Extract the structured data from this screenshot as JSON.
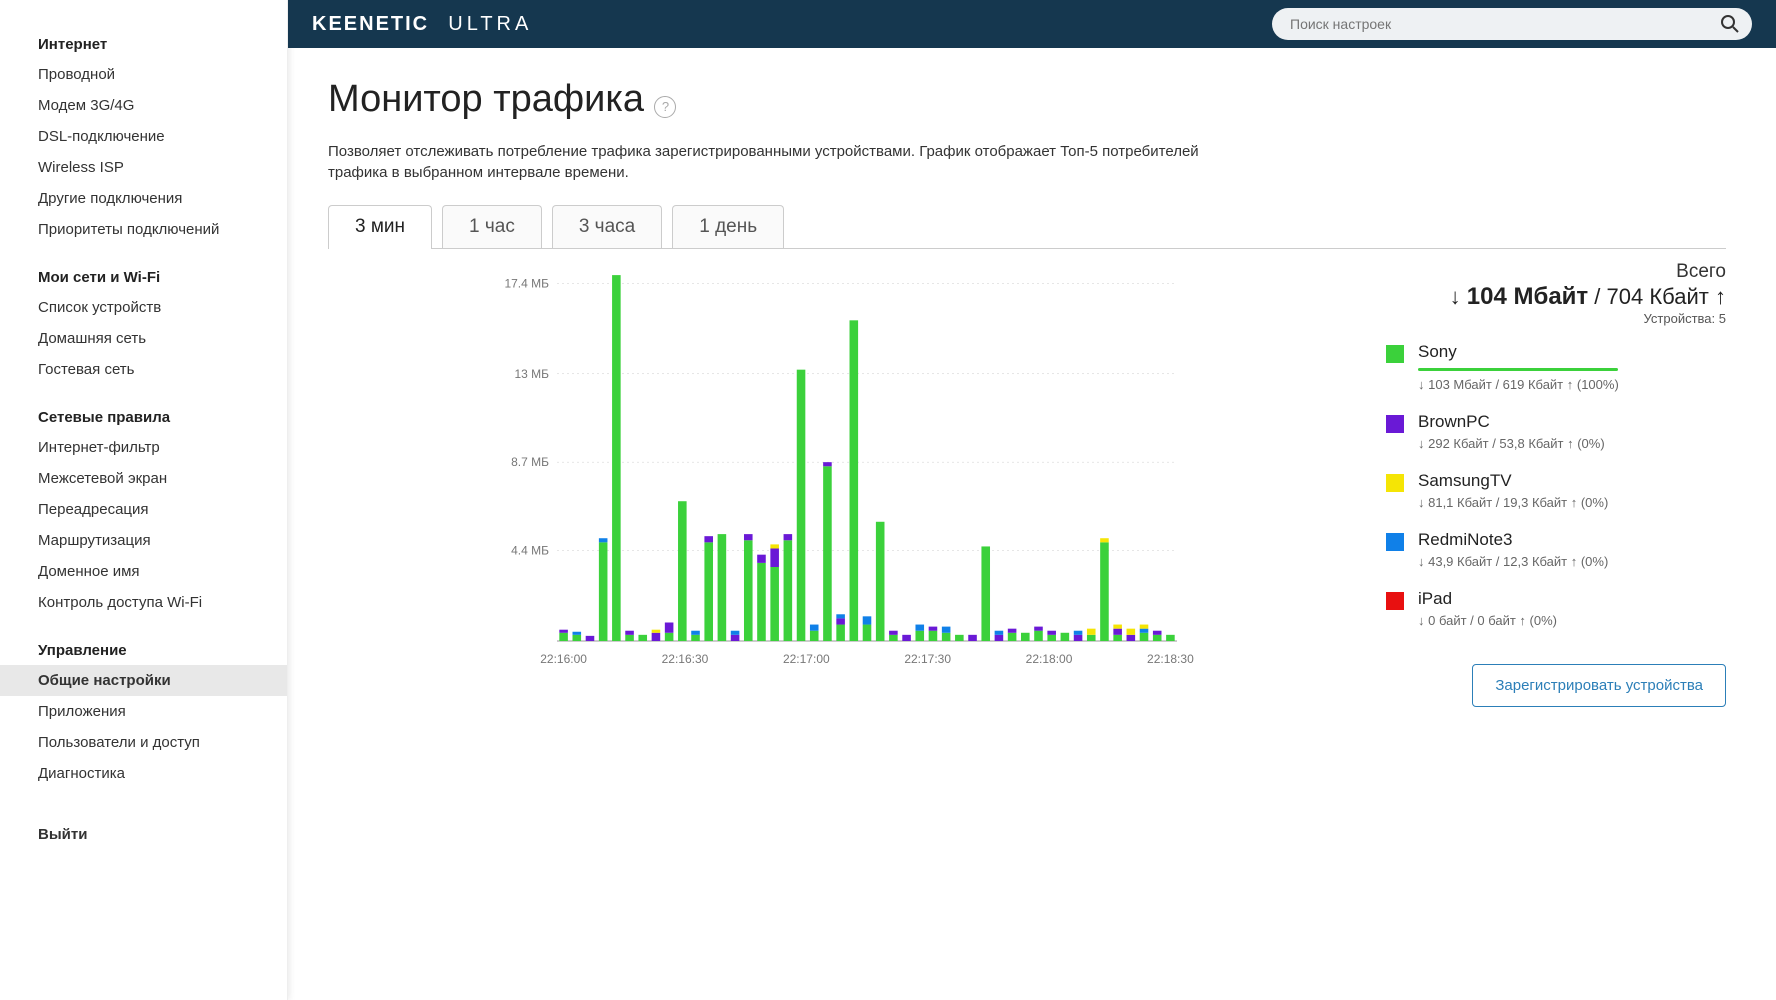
{
  "brand": {
    "bold": "KEENETIC",
    "light": "ULTRA"
  },
  "search": {
    "placeholder": "Поиск настроек"
  },
  "sidebar": {
    "groups": [
      {
        "title": "Интернет",
        "items": [
          "Проводной",
          "Модем 3G/4G",
          "DSL-подключение",
          "Wireless ISP",
          "Другие подключения",
          "Приоритеты подключений"
        ]
      },
      {
        "title": "Мои сети и Wi-Fi",
        "items": [
          "Список устройств",
          "Домашняя сеть",
          "Гостевая сеть"
        ]
      },
      {
        "title": "Сетевые правила",
        "items": [
          "Интернет-фильтр",
          "Межсетевой экран",
          "Переадресация",
          "Маршрутизация",
          "Доменное имя",
          "Контроль доступа Wi-Fi"
        ]
      },
      {
        "title": "Управление",
        "items": [
          "Общие настройки",
          "Приложения",
          "Пользователи и доступ",
          "Диагностика"
        ],
        "activeIndex": 0
      }
    ],
    "exit": "Выйти"
  },
  "page": {
    "title": "Монитор трафика",
    "desc": "Позволяет отслеживать потребление трафика зарегистрированными устройствами. График отображает Топ-5 потребителей трафика в выбранном интервале времени."
  },
  "tabs": {
    "items": [
      "3 мин",
      "1 час",
      "3 часа",
      "1 день"
    ],
    "activeIndex": 0
  },
  "chart": {
    "ymax": 18,
    "yticks": [
      4.4,
      8.7,
      13,
      17.4
    ],
    "ylabels": [
      "4.4 МБ",
      "8.7 МБ",
      "13 МБ",
      "17.4 МБ"
    ],
    "xlabels": [
      "22:16:00",
      "22:16:30",
      "22:17:00",
      "22:17:30",
      "22:18:00",
      "22:18:30"
    ],
    "colors": {
      "Sony": "#3bd13b",
      "BrownPC": "#6a19d6",
      "SamsungTV": "#f5e505",
      "RedmiNote3": "#1080e8",
      "iPad": "#e81010"
    },
    "background": "#ffffff",
    "grid_color": "#cccccc",
    "bars": [
      {
        "x": 0,
        "stacks": [
          [
            "Sony",
            0.4
          ],
          [
            "BrownPC",
            0.15
          ]
        ]
      },
      {
        "x": 1,
        "stacks": [
          [
            "Sony",
            0.3
          ],
          [
            "RedmiNote3",
            0.15
          ]
        ]
      },
      {
        "x": 2,
        "stacks": [
          [
            "BrownPC",
            0.25
          ]
        ]
      },
      {
        "x": 3,
        "stacks": [
          [
            "Sony",
            4.8
          ],
          [
            "RedmiNote3",
            0.2
          ]
        ]
      },
      {
        "x": 4,
        "stacks": [
          [
            "Sony",
            17.8
          ]
        ]
      },
      {
        "x": 5,
        "stacks": [
          [
            "Sony",
            0.3
          ],
          [
            "BrownPC",
            0.2
          ]
        ]
      },
      {
        "x": 6,
        "stacks": [
          [
            "Sony",
            0.3
          ]
        ]
      },
      {
        "x": 7,
        "stacks": [
          [
            "BrownPC",
            0.4
          ],
          [
            "SamsungTV",
            0.15
          ]
        ]
      },
      {
        "x": 8,
        "stacks": [
          [
            "Sony",
            0.4
          ],
          [
            "BrownPC",
            0.5
          ]
        ]
      },
      {
        "x": 9,
        "stacks": [
          [
            "Sony",
            6.8
          ]
        ]
      },
      {
        "x": 10,
        "stacks": [
          [
            "Sony",
            0.3
          ],
          [
            "RedmiNote3",
            0.2
          ]
        ]
      },
      {
        "x": 11,
        "stacks": [
          [
            "Sony",
            4.8
          ],
          [
            "BrownPC",
            0.3
          ]
        ]
      },
      {
        "x": 12,
        "stacks": [
          [
            "Sony",
            5.2
          ]
        ]
      },
      {
        "x": 13,
        "stacks": [
          [
            "BrownPC",
            0.3
          ],
          [
            "RedmiNote3",
            0.2
          ]
        ]
      },
      {
        "x": 14,
        "stacks": [
          [
            "Sony",
            4.9
          ],
          [
            "BrownPC",
            0.3
          ]
        ]
      },
      {
        "x": 15,
        "stacks": [
          [
            "Sony",
            3.8
          ],
          [
            "BrownPC",
            0.4
          ]
        ]
      },
      {
        "x": 16,
        "stacks": [
          [
            "Sony",
            3.6
          ],
          [
            "BrownPC",
            0.9
          ],
          [
            "SamsungTV",
            0.2
          ]
        ]
      },
      {
        "x": 17,
        "stacks": [
          [
            "Sony",
            4.9
          ],
          [
            "BrownPC",
            0.3
          ]
        ]
      },
      {
        "x": 18,
        "stacks": [
          [
            "Sony",
            13.2
          ]
        ]
      },
      {
        "x": 19,
        "stacks": [
          [
            "Sony",
            0.5
          ],
          [
            "RedmiNote3",
            0.3
          ]
        ]
      },
      {
        "x": 20,
        "stacks": [
          [
            "Sony",
            8.5
          ],
          [
            "BrownPC",
            0.2
          ]
        ]
      },
      {
        "x": 21,
        "stacks": [
          [
            "Sony",
            0.8
          ],
          [
            "BrownPC",
            0.3
          ],
          [
            "RedmiNote3",
            0.2
          ]
        ]
      },
      {
        "x": 22,
        "stacks": [
          [
            "Sony",
            15.6
          ]
        ]
      },
      {
        "x": 23,
        "stacks": [
          [
            "Sony",
            0.8
          ],
          [
            "RedmiNote3",
            0.4
          ]
        ]
      },
      {
        "x": 24,
        "stacks": [
          [
            "Sony",
            5.8
          ]
        ]
      },
      {
        "x": 25,
        "stacks": [
          [
            "Sony",
            0.3
          ],
          [
            "BrownPC",
            0.2
          ]
        ]
      },
      {
        "x": 26,
        "stacks": [
          [
            "BrownPC",
            0.3
          ]
        ]
      },
      {
        "x": 27,
        "stacks": [
          [
            "Sony",
            0.5
          ],
          [
            "RedmiNote3",
            0.3
          ]
        ]
      },
      {
        "x": 28,
        "stacks": [
          [
            "Sony",
            0.5
          ],
          [
            "BrownPC",
            0.2
          ]
        ]
      },
      {
        "x": 29,
        "stacks": [
          [
            "Sony",
            0.4
          ],
          [
            "RedmiNote3",
            0.3
          ]
        ]
      },
      {
        "x": 30,
        "stacks": [
          [
            "Sony",
            0.3
          ]
        ]
      },
      {
        "x": 31,
        "stacks": [
          [
            "BrownPC",
            0.3
          ]
        ]
      },
      {
        "x": 32,
        "stacks": [
          [
            "Sony",
            4.6
          ]
        ]
      },
      {
        "x": 33,
        "stacks": [
          [
            "BrownPC",
            0.3
          ],
          [
            "RedmiNote3",
            0.2
          ]
        ]
      },
      {
        "x": 34,
        "stacks": [
          [
            "Sony",
            0.4
          ],
          [
            "BrownPC",
            0.2
          ]
        ]
      },
      {
        "x": 35,
        "stacks": [
          [
            "Sony",
            0.4
          ]
        ]
      },
      {
        "x": 36,
        "stacks": [
          [
            "Sony",
            0.5
          ],
          [
            "BrownPC",
            0.2
          ]
        ]
      },
      {
        "x": 37,
        "stacks": [
          [
            "Sony",
            0.3
          ],
          [
            "BrownPC",
            0.2
          ]
        ]
      },
      {
        "x": 38,
        "stacks": [
          [
            "Sony",
            0.4
          ]
        ]
      },
      {
        "x": 39,
        "stacks": [
          [
            "BrownPC",
            0.3
          ],
          [
            "RedmiNote3",
            0.2
          ]
        ]
      },
      {
        "x": 40,
        "stacks": [
          [
            "Sony",
            0.3
          ],
          [
            "SamsungTV",
            0.3
          ]
        ]
      },
      {
        "x": 41,
        "stacks": [
          [
            "Sony",
            4.8
          ],
          [
            "SamsungTV",
            0.2
          ]
        ]
      },
      {
        "x": 42,
        "stacks": [
          [
            "Sony",
            0.3
          ],
          [
            "BrownPC",
            0.3
          ],
          [
            "SamsungTV",
            0.2
          ]
        ]
      },
      {
        "x": 43,
        "stacks": [
          [
            "BrownPC",
            0.3
          ],
          [
            "SamsungTV",
            0.3
          ]
        ]
      },
      {
        "x": 44,
        "stacks": [
          [
            "Sony",
            0.4
          ],
          [
            "RedmiNote3",
            0.2
          ],
          [
            "SamsungTV",
            0.2
          ]
        ]
      },
      {
        "x": 45,
        "stacks": [
          [
            "Sony",
            0.3
          ],
          [
            "BrownPC",
            0.2
          ]
        ]
      },
      {
        "x": 46,
        "stacks": [
          [
            "Sony",
            0.3
          ]
        ]
      }
    ]
  },
  "total": {
    "label": "Всего",
    "down": "104 Мбайт",
    "up": "704 Кбайт",
    "devices": "Устройства: 5"
  },
  "legend": [
    {
      "name": "Sony",
      "color": "#3bd13b",
      "stats": "↓ 103 Мбайт / 619 Кбайт ↑ (100%)",
      "bar": 100
    },
    {
      "name": "BrownPC",
      "color": "#6a19d6",
      "stats": "↓ 292 Кбайт / 53,8 Кбайт ↑ (0%)",
      "bar": 0
    },
    {
      "name": "SamsungTV",
      "color": "#f5e505",
      "stats": "↓ 81,1 Кбайт / 19,3 Кбайт ↑ (0%)",
      "bar": 0
    },
    {
      "name": "RedmiNote3",
      "color": "#1080e8",
      "stats": "↓ 43,9 Кбайт / 12,3 Кбайт ↑ (0%)",
      "bar": 0
    },
    {
      "name": "iPad",
      "color": "#e81010",
      "stats": "↓ 0 байт / 0 байт ↑ (0%)",
      "bar": 0
    }
  ],
  "register_btn": "Зарегистрировать устройства"
}
